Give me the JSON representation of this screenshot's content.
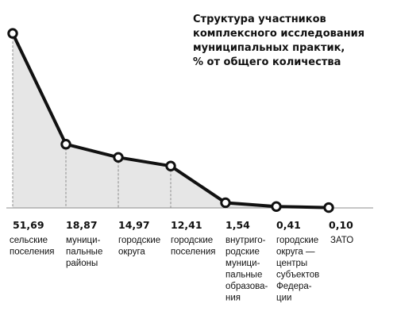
{
  "chart_data": {
    "type": "line",
    "title": [
      "Структура участников",
      "комплексного исследования",
      "муниципальных практик,",
      "% от общего количества"
    ],
    "values": [
      51.69,
      18.87,
      14.97,
      12.41,
      1.54,
      0.41,
      0.1
    ],
    "value_labels": [
      "51,69",
      "18,87",
      "14,97",
      "12,41",
      "1,54",
      "0,41",
      "0,10"
    ],
    "categories": [
      [
        "сельские",
        "поселения"
      ],
      [
        "муници-",
        "пальные",
        "районы"
      ],
      [
        "городские",
        "округа"
      ],
      [
        "городские",
        "поселения"
      ],
      [
        "внутриго-",
        "родские",
        "муници-",
        "пальные",
        "образова-",
        "ния"
      ],
      [
        "городские",
        "округа —",
        "центры",
        "субъектов",
        "Федера-",
        "ции"
      ],
      [
        "ЗАТО"
      ]
    ],
    "ylim": [
      0,
      55
    ],
    "grid": false,
    "colors": {
      "line": "#111111",
      "fill": "#e6e6e6",
      "marker_fill": "#ffffff",
      "axis": "#8c8c8c"
    }
  }
}
